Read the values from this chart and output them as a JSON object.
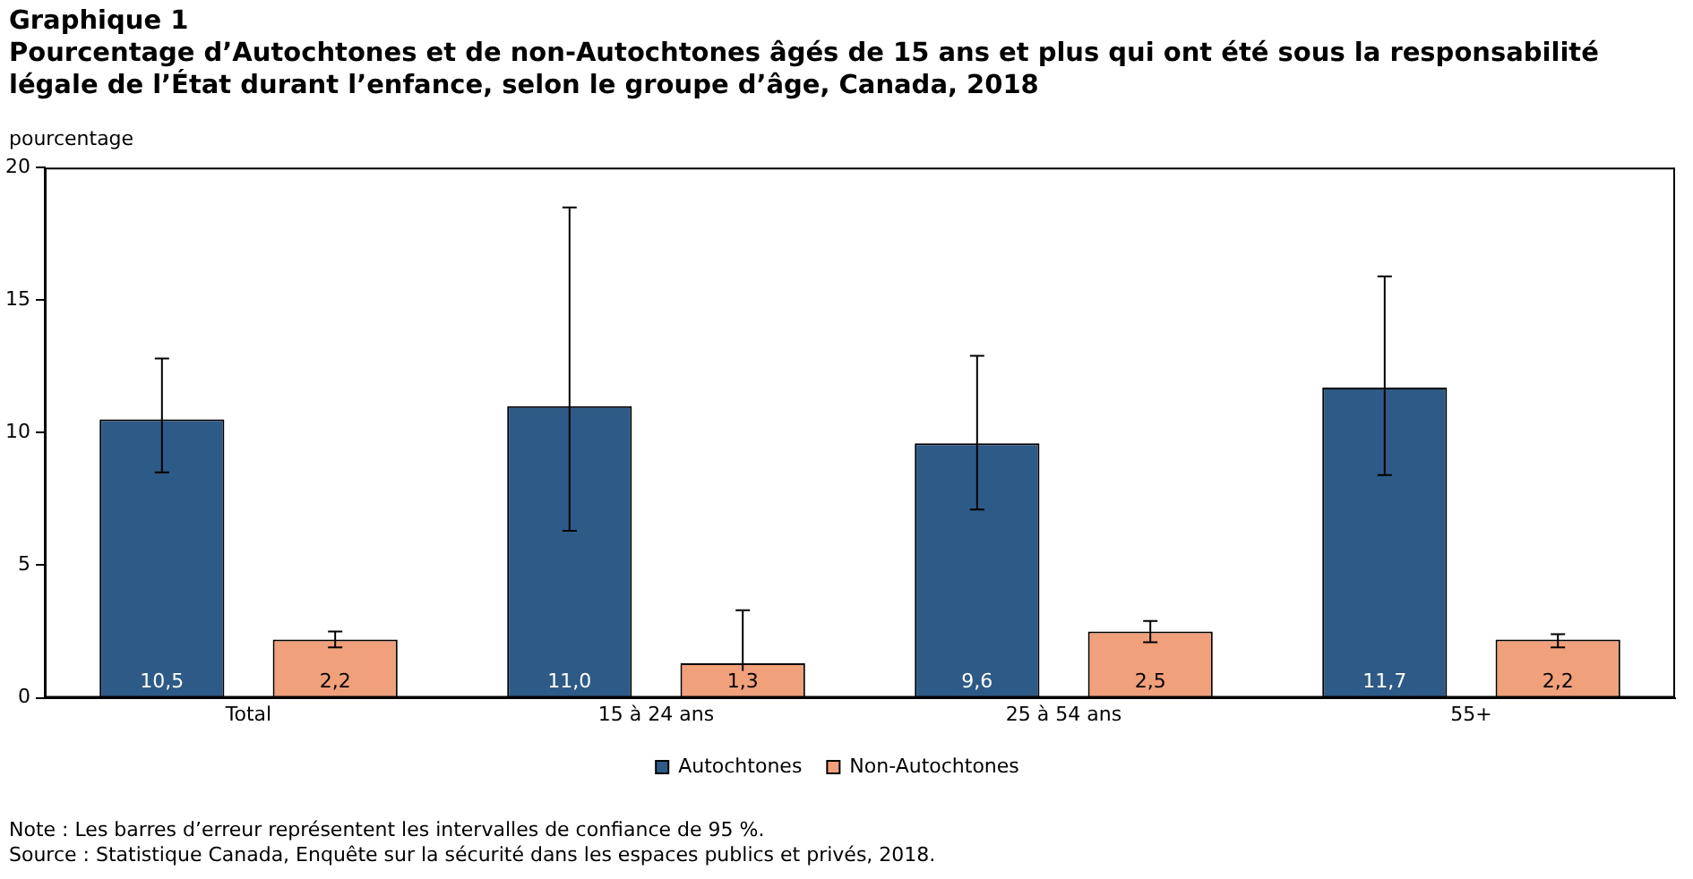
{
  "chart_data": {
    "type": "bar",
    "title": "Graphique 1",
    "subtitle": "Pourcentage d’Autochtones et de non-Autochtones âgés de 15 ans et plus qui ont été sous la responsabilité légale de l’État durant l’enfance, selon le groupe d’âge, Canada, 2018",
    "ylabel": "pourcentage",
    "categories": [
      "Total",
      "15 à 24 ans",
      "25 à 54 ans",
      "55+"
    ],
    "series": [
      {
        "name": "Autochtones",
        "color": "#2e5a87",
        "values": [
          10.5,
          11.0,
          9.6,
          11.7
        ],
        "value_labels": [
          "10,5",
          "11,0",
          "9,6",
          "11,7"
        ],
        "errors": [
          [
            8.5,
            12.8
          ],
          [
            6.3,
            18.5
          ],
          [
            7.1,
            12.9
          ],
          [
            8.4,
            15.9
          ]
        ]
      },
      {
        "name": "Non-Autochtones",
        "color": "#f0a07a",
        "values": [
          2.2,
          1.3,
          2.5,
          2.2
        ],
        "value_labels": [
          "2,2",
          "1,3",
          "2,5",
          "2,2"
        ],
        "errors": [
          [
            1.9,
            2.5
          ],
          [
            0.6,
            3.3
          ],
          [
            2.1,
            2.9
          ],
          [
            1.9,
            2.4
          ]
        ]
      }
    ],
    "ylim": [
      0,
      20
    ],
    "yticks": [
      0,
      5,
      10,
      15,
      20
    ],
    "legend": "bottom",
    "annotations": [
      "Note : Les barres d’erreur représentent les intervalles de confiance de 95 %.",
      "Source : Statistique Canada, Enquête sur la sécurité dans les espaces publics et privés, 2018."
    ]
  }
}
